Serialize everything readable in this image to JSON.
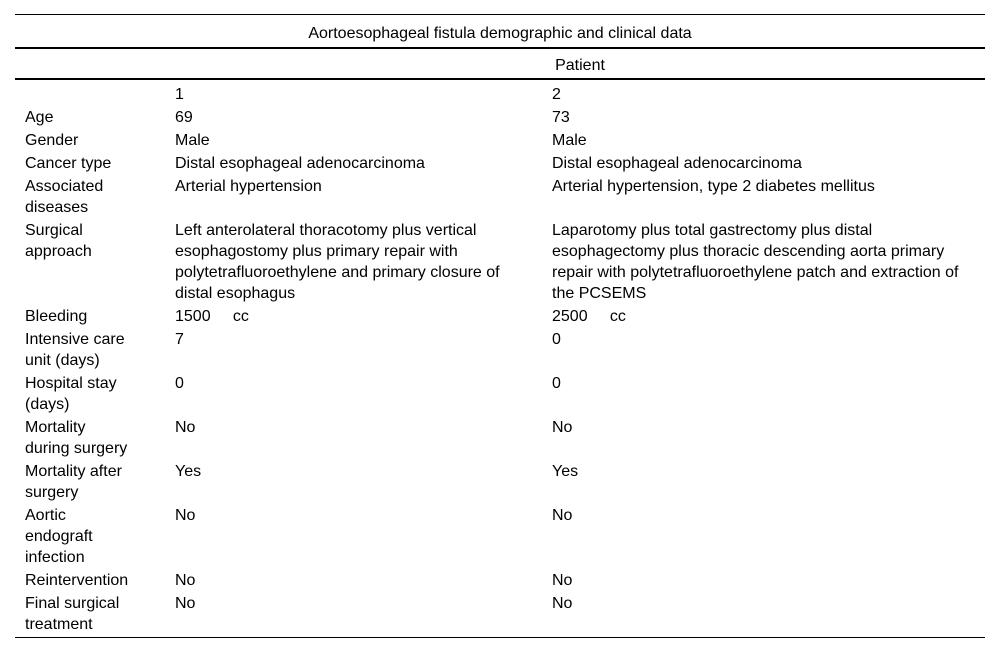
{
  "page": {
    "background_color": "#ffffff",
    "text_color": "#000000",
    "rule_color": "#000000"
  },
  "table": {
    "title": "Aortoesophageal fistula demographic and clinical data",
    "group_header": "Patient",
    "patient_numbers": [
      "1",
      "2"
    ],
    "rows": [
      {
        "label": "Age",
        "patient1": "69",
        "patient2": "73"
      },
      {
        "label": "Gender",
        "patient1": "Male",
        "patient2": "Male"
      },
      {
        "label": "Cancer type",
        "patient1": "Distal esophageal adenocarcinoma",
        "patient2": "Distal esophageal adenocarcinoma"
      },
      {
        "label": "Associated diseases",
        "patient1": "Arterial hypertension",
        "patient2": "Arterial hypertension, type 2 diabetes mellitus"
      },
      {
        "label": "Surgical approach",
        "patient1": "Left anterolateral thoracotomy plus vertical esophagostomy plus primary repair with polytetrafluoroethylene and primary closure of distal esophagus",
        "patient2": "Laparotomy plus total gastrectomy plus distal esophagectomy plus thoracic descending aorta primary repair with polytetrafluoroethylene patch and extraction of the PCSEMS"
      },
      {
        "label": "Bleeding",
        "patient1": "1500     cc",
        "patient2": "2500     cc"
      },
      {
        "label": "Intensive care unit (days)",
        "patient1": "7",
        "patient2": "0"
      },
      {
        "label": "Hospital stay (days)",
        "patient1": "0",
        "patient2": "0"
      },
      {
        "label": "Mortality during surgery",
        "patient1": "No",
        "patient2": "No"
      },
      {
        "label": "Mortality after surgery",
        "patient1": "Yes",
        "patient2": "Yes"
      },
      {
        "label": "Aortic endograft infection",
        "patient1": "No",
        "patient2": "No"
      },
      {
        "label": "Reintervention",
        "patient1": "No",
        "patient2": "No"
      },
      {
        "label": "Final surgical treatment",
        "patient1": "No",
        "patient2": "No"
      }
    ]
  }
}
